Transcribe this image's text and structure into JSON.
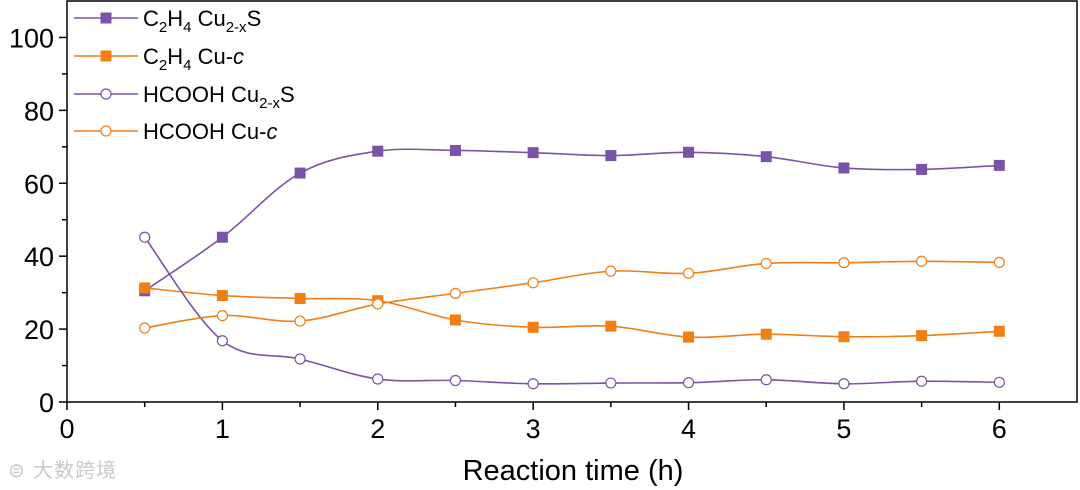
{
  "chart_data": {
    "type": "line",
    "title": "",
    "xlabel": "Reaction time (h)",
    "ylabel": "",
    "xlim": [
      0,
      6.5
    ],
    "ylim": [
      0,
      110
    ],
    "x_ticks": [
      "0",
      "1",
      "2",
      "3",
      "4",
      "5",
      "6"
    ],
    "y_ticks": [
      "0",
      "20",
      "40",
      "60",
      "80",
      "100"
    ],
    "x": [
      0.5,
      1,
      1.5,
      2,
      2.5,
      3,
      3.5,
      4,
      4.5,
      5,
      5.5,
      6
    ],
    "legend_position": "top-left",
    "series": [
      {
        "name": "C2H4 Cu2-xS",
        "label_main": "C",
        "label_sub1": "2",
        "label_mid": "H",
        "label_sub2": "4",
        "label_tail": " Cu",
        "label_sub3": "2-x",
        "label_end": "S",
        "color": "#7a52a8",
        "marker": "filled-square",
        "values": [
          30.5,
          45.2,
          62.8,
          68.8,
          69.0,
          68.4,
          67.6,
          68.5,
          67.3,
          64.2,
          63.8,
          64.9
        ]
      },
      {
        "name": "C2H4 Cu-c",
        "label_main": "C",
        "label_sub1": "2",
        "label_mid": "H",
        "label_sub2": "4",
        "label_tail": " Cu-",
        "label_italic": "c",
        "color": "#f07f16",
        "marker": "filled-square",
        "values": [
          31.3,
          29.2,
          28.4,
          27.8,
          22.5,
          20.5,
          20.8,
          17.8,
          18.6,
          17.9,
          18.2,
          19.4
        ]
      },
      {
        "name": "HCOOH Cu2-xS",
        "label_main": "HCOOH Cu",
        "label_sub3": "2-x",
        "label_end": "S",
        "color": "#7a52a8",
        "marker": "open-circle",
        "values": [
          45.2,
          16.8,
          11.8,
          6.3,
          5.9,
          5.0,
          5.2,
          5.3,
          6.1,
          5.0,
          5.7,
          5.4
        ]
      },
      {
        "name": "HCOOH Cu-c",
        "label_main": "HCOOH Cu-",
        "label_italic": "c",
        "color": "#f07f16",
        "marker": "open-circle",
        "values": [
          20.3,
          23.7,
          22.2,
          26.9,
          29.8,
          32.7,
          35.9,
          35.3,
          38.0,
          38.2,
          38.6,
          38.3
        ]
      }
    ]
  },
  "watermark": "大数跨境"
}
